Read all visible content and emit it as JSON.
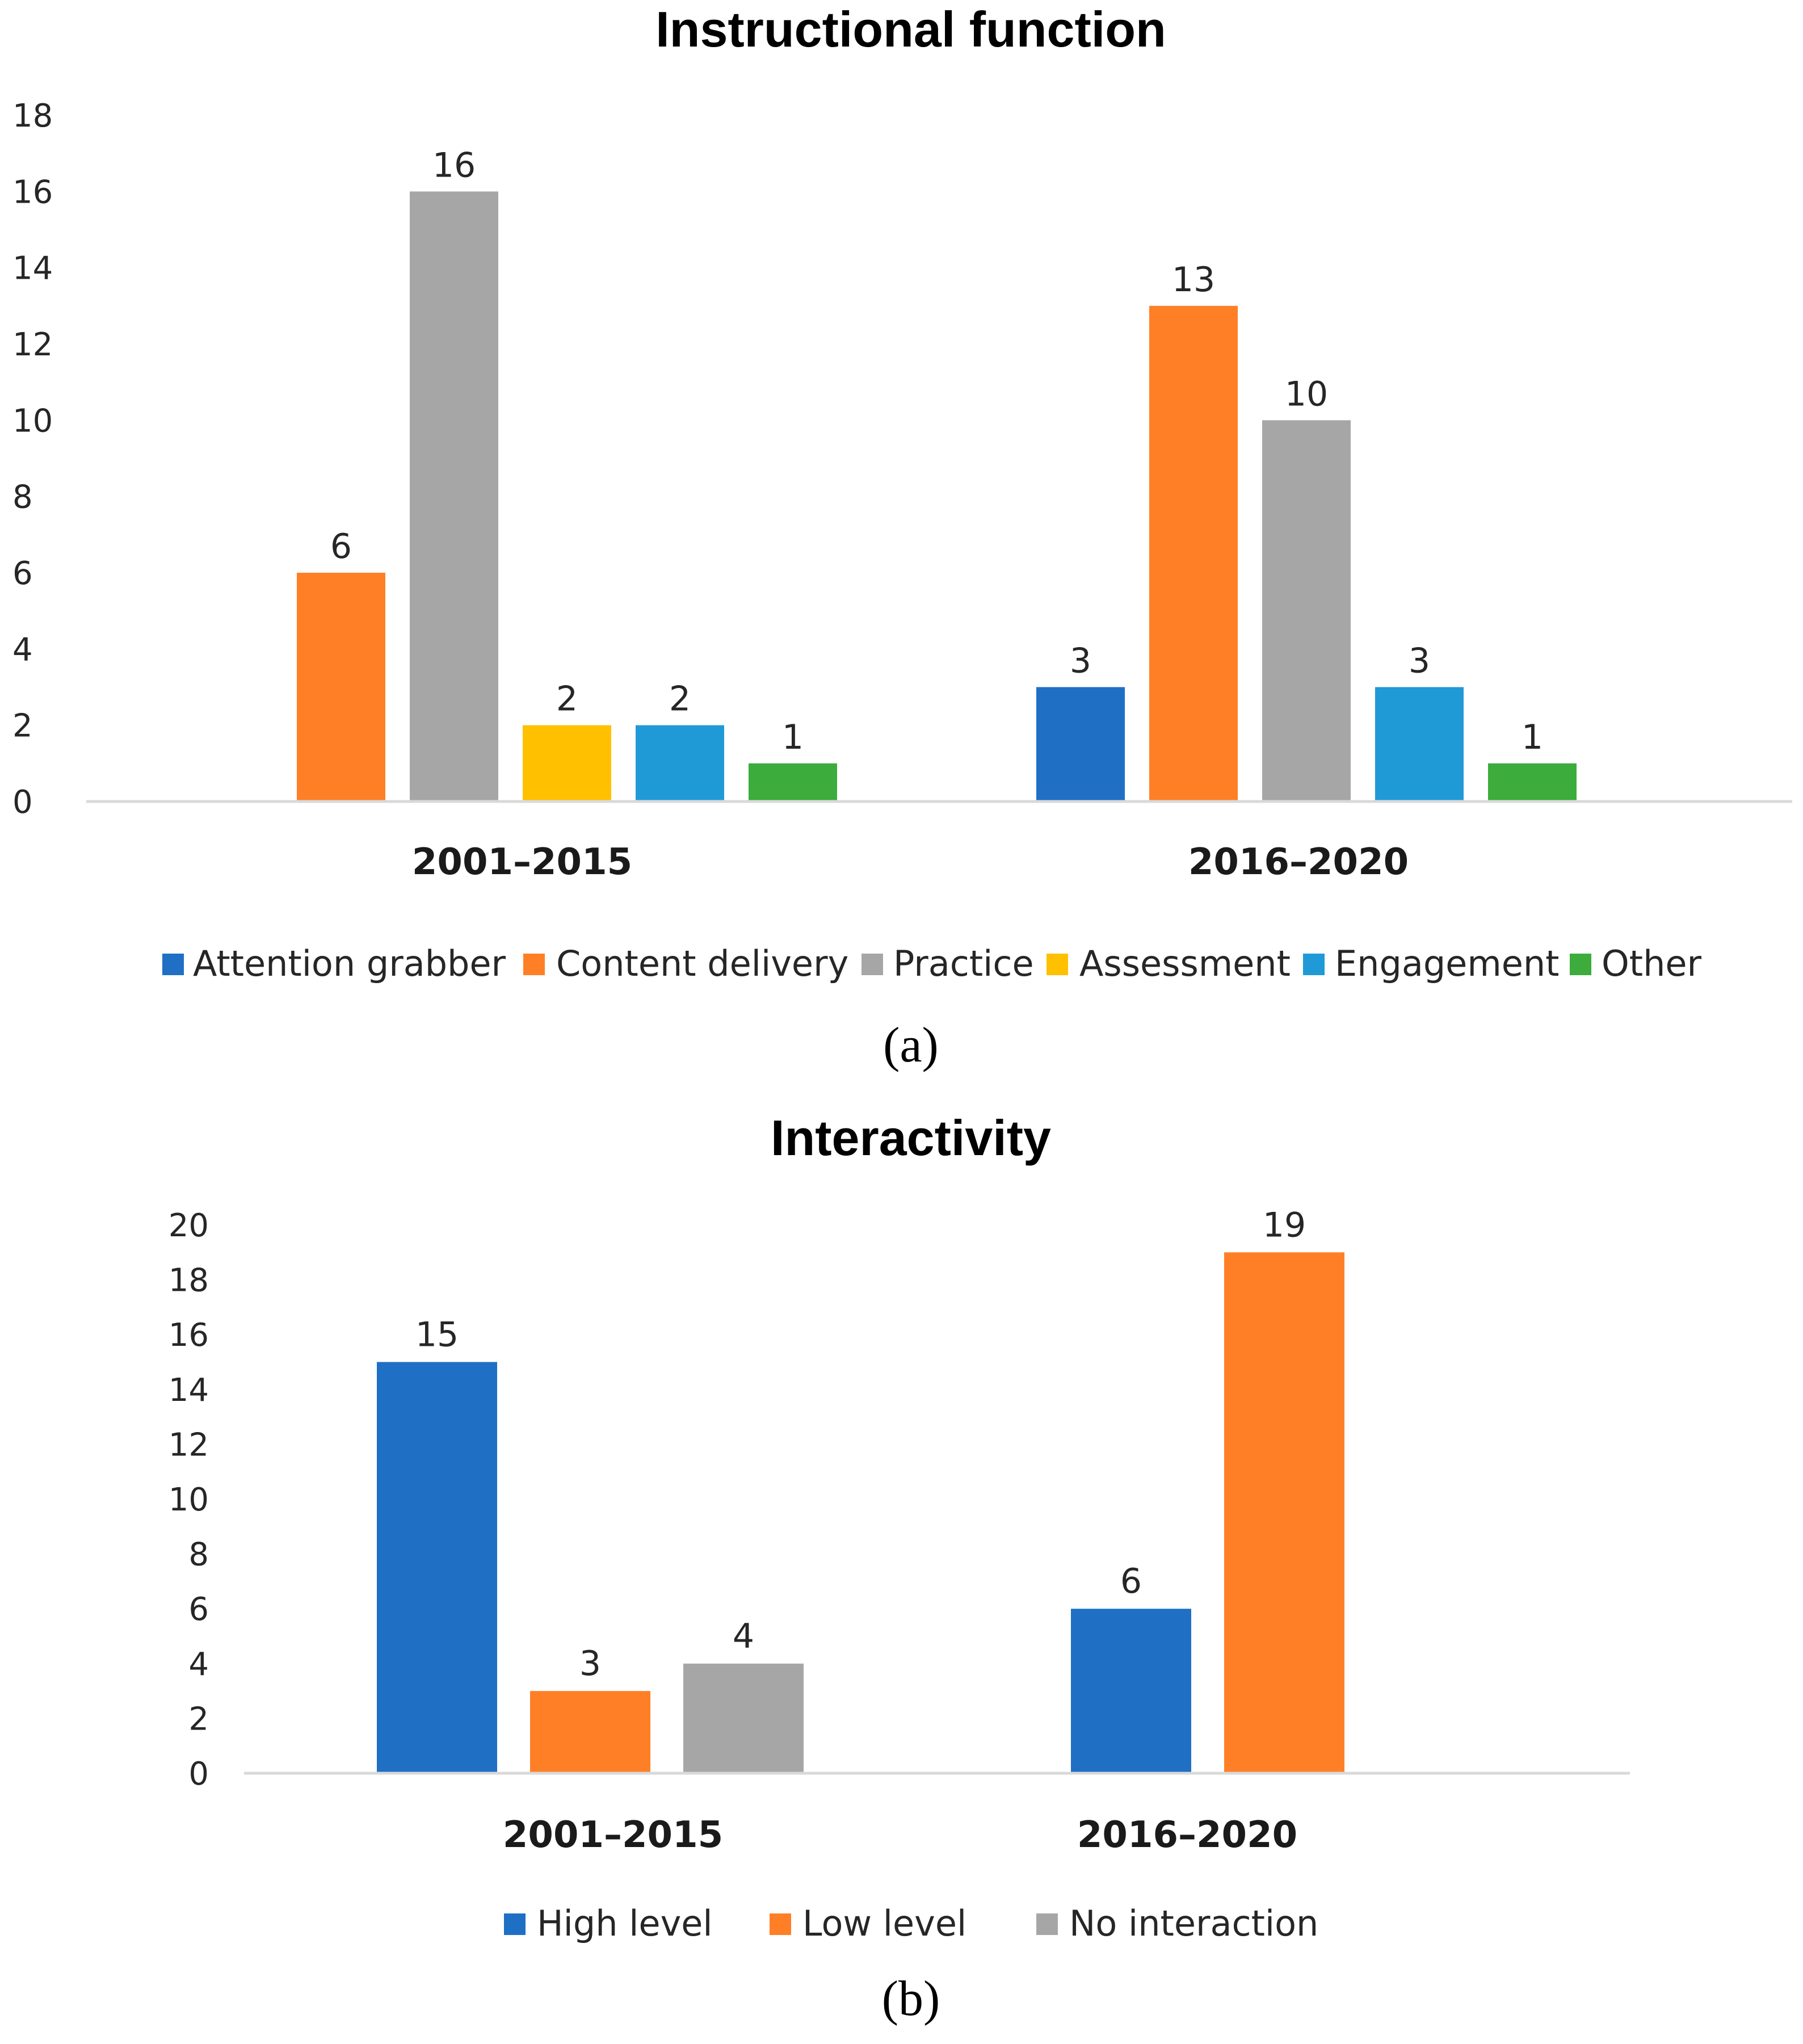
{
  "chart_data": [
    {
      "type": "bar",
      "title": "Instructional function",
      "caption": "(a)",
      "categories": [
        "2001–2015",
        "2016–2020"
      ],
      "ylim": [
        0,
        18
      ],
      "yticks": [
        "0",
        "2",
        "4",
        "6",
        "8",
        "10",
        "12",
        "14",
        "16",
        "18"
      ],
      "grid": false,
      "legend_position": "bottom",
      "series": [
        {
          "name": "Attention grabber",
          "color": "#1f6fc5",
          "values": [
            0,
            3
          ]
        },
        {
          "name": "Content delivery",
          "color": "#ff7f27",
          "values": [
            6,
            13
          ]
        },
        {
          "name": "Practice",
          "color": "#a6a6a6",
          "values": [
            16,
            10
          ]
        },
        {
          "name": "Assessment",
          "color": "#ffc000",
          "values": [
            2,
            0
          ]
        },
        {
          "name": "Engagement",
          "color": "#1f9ad6",
          "values": [
            2,
            3
          ]
        },
        {
          "name": "Other",
          "color": "#3cac3c",
          "values": [
            1,
            1
          ]
        }
      ]
    },
    {
      "type": "bar",
      "title": "Interactivity",
      "caption": "(b)",
      "categories": [
        "2001–2015",
        "2016–2020"
      ],
      "ylim": [
        0,
        20
      ],
      "yticks": [
        "0",
        "2",
        "4",
        "6",
        "8",
        "10",
        "12",
        "14",
        "16",
        "18",
        "20"
      ],
      "grid": false,
      "legend_position": "bottom",
      "series": [
        {
          "name": "High level",
          "color": "#1f6fc5",
          "values": [
            15,
            6
          ]
        },
        {
          "name": "Low level",
          "color": "#ff7f27",
          "values": [
            3,
            19
          ]
        },
        {
          "name": "No interaction",
          "color": "#a6a6a6",
          "values": [
            4,
            0
          ]
        }
      ]
    }
  ]
}
